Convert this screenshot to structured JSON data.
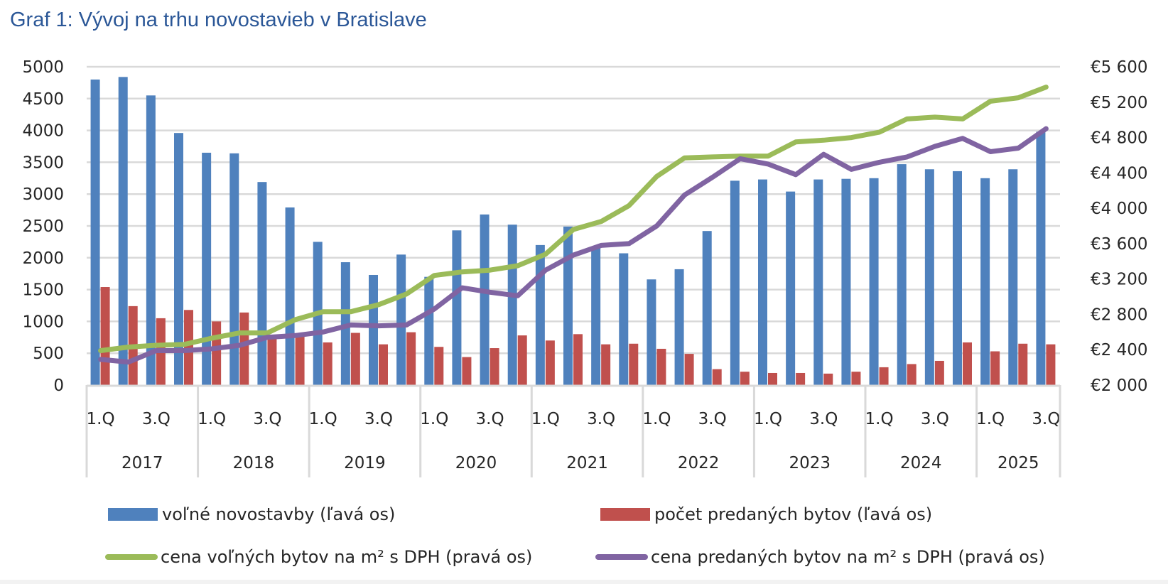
{
  "title": "Graf 1: Vývoj na trhu novostavieb v Bratislave",
  "colors": {
    "title": "#2b5797",
    "blue": "#4f81bd",
    "red": "#c0504d",
    "green": "#9bbb59",
    "purple": "#8064a2",
    "grid": "#d9d9d9",
    "text": "#262626"
  },
  "chart_data": {
    "type": "bar",
    "title": "Graf 1: Vývoj na trhu novostavieb v Bratislave",
    "xlabel": "",
    "ylabel": "",
    "grid": true,
    "legend_position": "bottom",
    "years": [
      "2017",
      "2018",
      "2019",
      "2020",
      "2021",
      "2022",
      "2023",
      "2024",
      "2025"
    ],
    "quarters_per_year": [
      4,
      4,
      4,
      4,
      4,
      4,
      4,
      4,
      3
    ],
    "quarter_labels_shown": [
      "1.Q",
      "3.Q"
    ],
    "categories": [
      "2017 Q1",
      "2017 Q2",
      "2017 Q3",
      "2017 Q4",
      "2018 Q1",
      "2018 Q2",
      "2018 Q3",
      "2018 Q4",
      "2019 Q1",
      "2019 Q2",
      "2019 Q3",
      "2019 Q4",
      "2020 Q1",
      "2020 Q2",
      "2020 Q3",
      "2020 Q4",
      "2021 Q1",
      "2021 Q2",
      "2021 Q3",
      "2021 Q4",
      "2022 Q1",
      "2022 Q2",
      "2022 Q3",
      "2022 Q4",
      "2023 Q1",
      "2023 Q2",
      "2023 Q3",
      "2023 Q4",
      "2024 Q1",
      "2024 Q2",
      "2024 Q3",
      "2024 Q4",
      "2025 Q1",
      "2025 Q2",
      "2025 Q3"
    ],
    "y_left": {
      "range": [
        0,
        5000
      ],
      "ticks": [
        0,
        500,
        1000,
        1500,
        2000,
        2500,
        3000,
        3500,
        4000,
        4500,
        5000
      ],
      "tick_labels": [
        "0",
        "500",
        "1000",
        "1500",
        "2000",
        "2500",
        "3000",
        "3500",
        "4000",
        "4500",
        "5000"
      ]
    },
    "y_right": {
      "range": [
        2000,
        5600
      ],
      "ticks": [
        2000,
        2400,
        2800,
        3200,
        3600,
        4000,
        4400,
        4800,
        5200,
        5600
      ],
      "tick_labels": [
        "€2 000",
        "€2 400",
        "€2 800",
        "€3 200",
        "€3 600",
        "€4 000",
        "€4 400",
        "€4 800",
        "€5 200",
        "€5 600"
      ]
    },
    "series": [
      {
        "name": "voľné novostavby (ľavá os)",
        "kind": "bar",
        "axis": "left",
        "color": "#4f81bd",
        "values": [
          4800,
          4840,
          4550,
          3960,
          3650,
          3640,
          3190,
          2790,
          2250,
          1930,
          1730,
          2050,
          1700,
          2430,
          2680,
          2520,
          2200,
          2490,
          2150,
          2070,
          1660,
          1820,
          2420,
          3210,
          3230,
          3040,
          3230,
          3240,
          3250,
          3470,
          3390,
          3360,
          3250,
          3390,
          3980
        ]
      },
      {
        "name": "počet predaných bytov (ľavá os)",
        "kind": "bar",
        "axis": "left",
        "color": "#c0504d",
        "values": [
          1540,
          1240,
          1050,
          1180,
          1000,
          1140,
          740,
          760,
          670,
          820,
          640,
          830,
          600,
          440,
          580,
          780,
          700,
          800,
          640,
          650,
          570,
          490,
          250,
          210,
          190,
          190,
          180,
          210,
          280,
          330,
          380,
          670,
          530,
          650,
          640
        ]
      },
      {
        "name": "cena voľných bytov na m² s DPH (pravá os)",
        "kind": "line",
        "axis": "right",
        "color": "#9bbb59",
        "values": [
          2390,
          2430,
          2450,
          2460,
          2530,
          2590,
          2590,
          2740,
          2830,
          2830,
          2910,
          3030,
          3240,
          3280,
          3300,
          3350,
          3480,
          3760,
          3850,
          4030,
          4360,
          4570,
          4580,
          4590,
          4590,
          4750,
          4770,
          4800,
          4860,
          5010,
          5030,
          5010,
          5210,
          5250,
          5370
        ]
      },
      {
        "name": "cena predaných bytov na m² s  DPH (pravá os)",
        "kind": "line",
        "axis": "right",
        "color": "#8064a2",
        "values": [
          2290,
          2260,
          2390,
          2390,
          2410,
          2450,
          2540,
          2560,
          2600,
          2680,
          2670,
          2680,
          2860,
          3100,
          3050,
          3010,
          3300,
          3470,
          3580,
          3600,
          3800,
          4150,
          4350,
          4560,
          4500,
          4380,
          4610,
          4440,
          4520,
          4580,
          4700,
          4790,
          4640,
          4680,
          4900
        ]
      }
    ]
  },
  "legend": [
    {
      "label": "voľné novostavby (ľavá os)",
      "type": "bar",
      "color": "#4f81bd"
    },
    {
      "label": "počet predaných bytov (ľavá os)",
      "type": "bar",
      "color": "#c0504d"
    },
    {
      "label": "cena voľných bytov na m² s DPH (pravá os)",
      "type": "line",
      "color": "#9bbb59"
    },
    {
      "label": "cena predaných bytov na m² s  DPH (pravá os)",
      "type": "line",
      "color": "#8064a2"
    }
  ]
}
